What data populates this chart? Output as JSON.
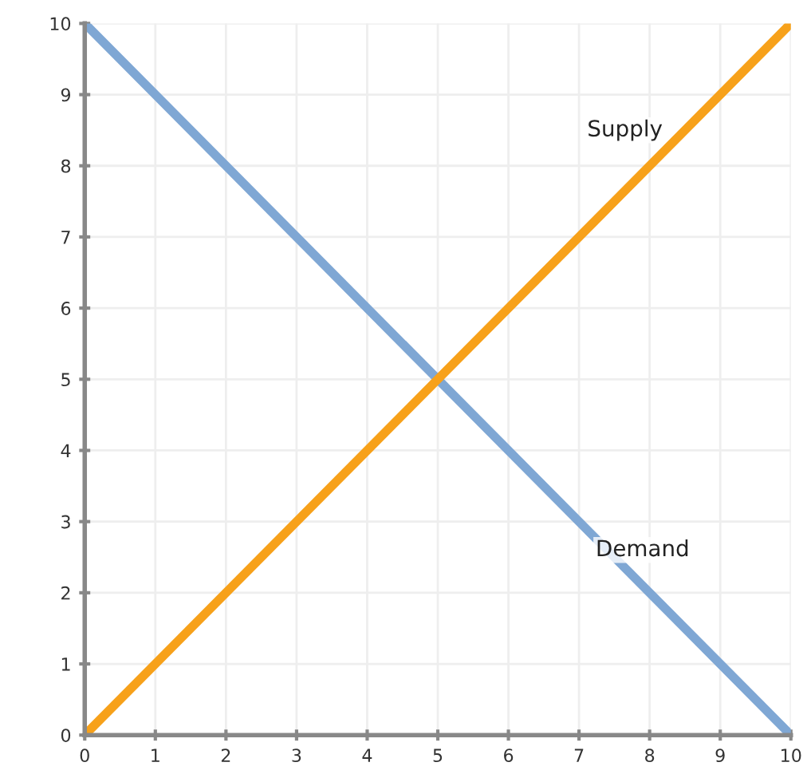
{
  "chart_data": {
    "type": "line",
    "series": [
      {
        "name": "Demand",
        "color": "#7fa7d4",
        "values": [
          10,
          0
        ]
      },
      {
        "name": "Supply",
        "color": "#f7a11a",
        "values": [
          0,
          10
        ]
      }
    ],
    "x": [
      0,
      10
    ],
    "xlim": [
      0,
      10
    ],
    "ylim": [
      0,
      10
    ],
    "xticks": [
      0,
      1,
      2,
      3,
      4,
      5,
      6,
      7,
      8,
      9,
      10
    ],
    "yticks": [
      0,
      1,
      2,
      3,
      4,
      5,
      6,
      7,
      8,
      9,
      10
    ],
    "grid": true,
    "legend": false,
    "marker": "none",
    "line_style": "solid"
  }
}
